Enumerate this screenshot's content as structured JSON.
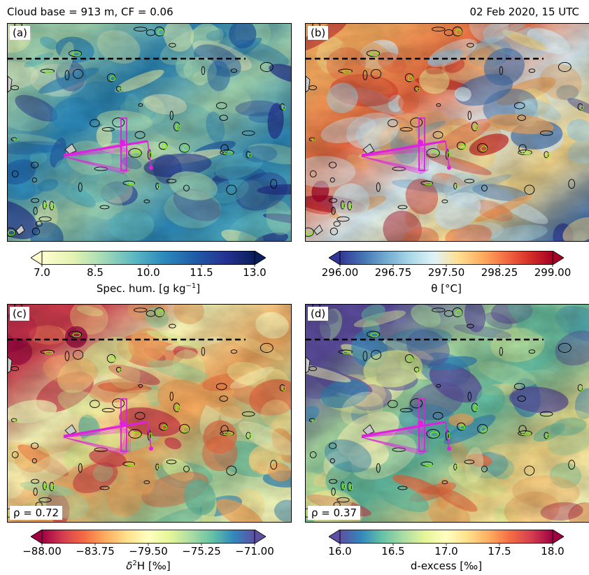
{
  "header": {
    "left": "Cloud base =  913 m, CF = 0.06",
    "right": "02 Feb 2020, 15 UTC"
  },
  "panels": [
    {
      "label": "(a)",
      "rho": "",
      "colormap": [
        "#fffdd0",
        "#e4f3b2",
        "#a5dbb6",
        "#5db9c2",
        "#2c8bbd",
        "#1f5ea8",
        "#253494",
        "#0a1f5c"
      ],
      "colorbar": {
        "ticks": [
          "7.0",
          "8.5",
          "10.0",
          "11.5",
          "13.0"
        ],
        "title_parts": [
          "Spec. hum. [g kg",
          "−1",
          "]"
        ]
      }
    },
    {
      "label": "(b)",
      "rho": "",
      "colormap": [
        "#313695",
        "#4575b4",
        "#74add1",
        "#abd9e9",
        "#e0f3f8",
        "#fee090",
        "#fdae61",
        "#f46d43",
        "#d73027",
        "#a50026"
      ],
      "colorbar": {
        "ticks": [
          "296.00",
          "296.75",
          "297.50",
          "298.25",
          "299.00"
        ],
        "title_parts": [
          "θ [°C]"
        ]
      }
    },
    {
      "label": "(c)",
      "rho": "ρ = 0.72",
      "colormap": [
        "#9e0142",
        "#d53e4f",
        "#f46d43",
        "#fdae61",
        "#fee08b",
        "#ffffbf",
        "#e6f598",
        "#abdda4",
        "#66c2a5",
        "#3288bd",
        "#5e4fa2"
      ],
      "colorbar": {
        "ticks": [
          "−88.00",
          "−83.75",
          "−79.50",
          "−75.25",
          "−71.00"
        ],
        "title_parts": [
          "δ",
          "2",
          "H [‰]"
        ]
      }
    },
    {
      "label": "(d)",
      "rho": "ρ = 0.37",
      "colormap": [
        "#5e4fa2",
        "#3288bd",
        "#66c2a5",
        "#abdda4",
        "#e6f598",
        "#ffffbf",
        "#fee08b",
        "#fdae61",
        "#f46d43",
        "#d53e4f",
        "#9e0142"
      ],
      "colorbar": {
        "ticks": [
          "16.0",
          "16.5",
          "17.0",
          "17.5",
          "18.0"
        ],
        "title_parts": [
          "d-excess [‰]"
        ]
      }
    }
  ],
  "legend_colors": {
    "flight_track": "#e020e0",
    "cloud_contour": "#7fff00",
    "dashed_line": "#000000",
    "land": "#c8c8c8"
  }
}
